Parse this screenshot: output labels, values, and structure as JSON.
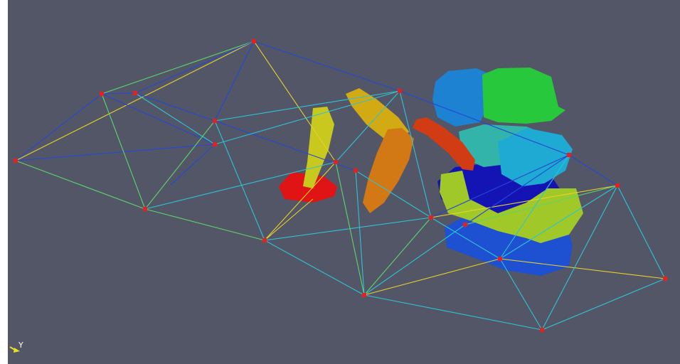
{
  "viewport": {
    "background": "#525667",
    "orientation_axis_label": "Y"
  },
  "colors": {
    "node": "#e81f1f",
    "edge_blue": "#2448d6",
    "edge_cyan": "#2ec4d4",
    "edge_green": "#5cd66a",
    "edge_yellow": "#e8d22a",
    "edge_red": "#d23030",
    "axis_arrow": "#e8e020"
  },
  "objects": [
    {
      "name": "red-base-block",
      "color": "#e01414"
    },
    {
      "name": "yellow-arm",
      "color": "#c8c81e"
    },
    {
      "name": "yellow-gold-upper-block",
      "color": "#d2aa14"
    },
    {
      "name": "orange-arm",
      "color": "#d27814"
    },
    {
      "name": "red-orange-arm",
      "color": "#d23c14"
    },
    {
      "name": "blue-cluster-top-left",
      "color": "#1e82d2"
    },
    {
      "name": "green-cluster-top-right",
      "color": "#28c83c"
    },
    {
      "name": "teal-cluster-middle",
      "color": "#32b4aa"
    },
    {
      "name": "light-blue-cluster",
      "color": "#1eaad2"
    },
    {
      "name": "dark-blue-cluster",
      "color": "#1414b4"
    },
    {
      "name": "lime-cluster",
      "color": "#a0c828"
    },
    {
      "name": "blue-base-cluster",
      "color": "#1e50d2"
    }
  ]
}
